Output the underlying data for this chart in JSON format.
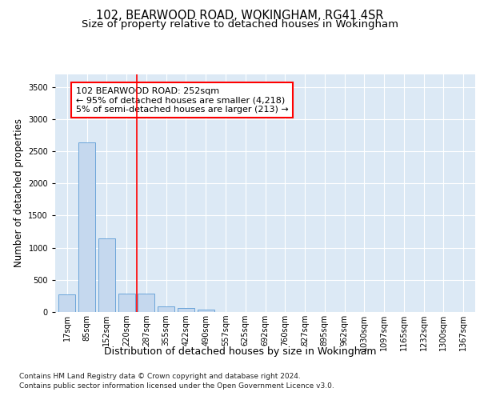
{
  "title1": "102, BEARWOOD ROAD, WOKINGHAM, RG41 4SR",
  "title2": "Size of property relative to detached houses in Wokingham",
  "xlabel": "Distribution of detached houses by size in Wokingham",
  "ylabel": "Number of detached properties",
  "footer1": "Contains HM Land Registry data © Crown copyright and database right 2024.",
  "footer2": "Contains public sector information licensed under the Open Government Licence v3.0.",
  "bar_labels": [
    "17sqm",
    "85sqm",
    "152sqm",
    "220sqm",
    "287sqm",
    "355sqm",
    "422sqm",
    "490sqm",
    "557sqm",
    "625sqm",
    "692sqm",
    "760sqm",
    "827sqm",
    "895sqm",
    "962sqm",
    "1030sqm",
    "1097sqm",
    "1165sqm",
    "1232sqm",
    "1300sqm",
    "1367sqm"
  ],
  "bar_values": [
    270,
    2640,
    1140,
    290,
    290,
    90,
    60,
    40,
    0,
    0,
    0,
    0,
    0,
    0,
    0,
    0,
    0,
    0,
    0,
    0,
    0
  ],
  "bar_color": "#c5d8ee",
  "bar_edge_color": "#5b9bd5",
  "red_line_x": 3.5,
  "annotation_title": "102 BEARWOOD ROAD: 252sqm",
  "annotation_line1": "← 95% of detached houses are smaller (4,218)",
  "annotation_line2": "5% of semi-detached houses are larger (213) →",
  "ylim": [
    0,
    3700
  ],
  "yticks": [
    0,
    500,
    1000,
    1500,
    2000,
    2500,
    3000,
    3500
  ],
  "background_color": "#dce9f5",
  "grid_color": "#ffffff",
  "title1_fontsize": 10.5,
  "title2_fontsize": 9.5,
  "ylabel_fontsize": 8.5,
  "xlabel_fontsize": 9,
  "tick_fontsize": 7,
  "annotation_fontsize": 8,
  "footer_fontsize": 6.5
}
